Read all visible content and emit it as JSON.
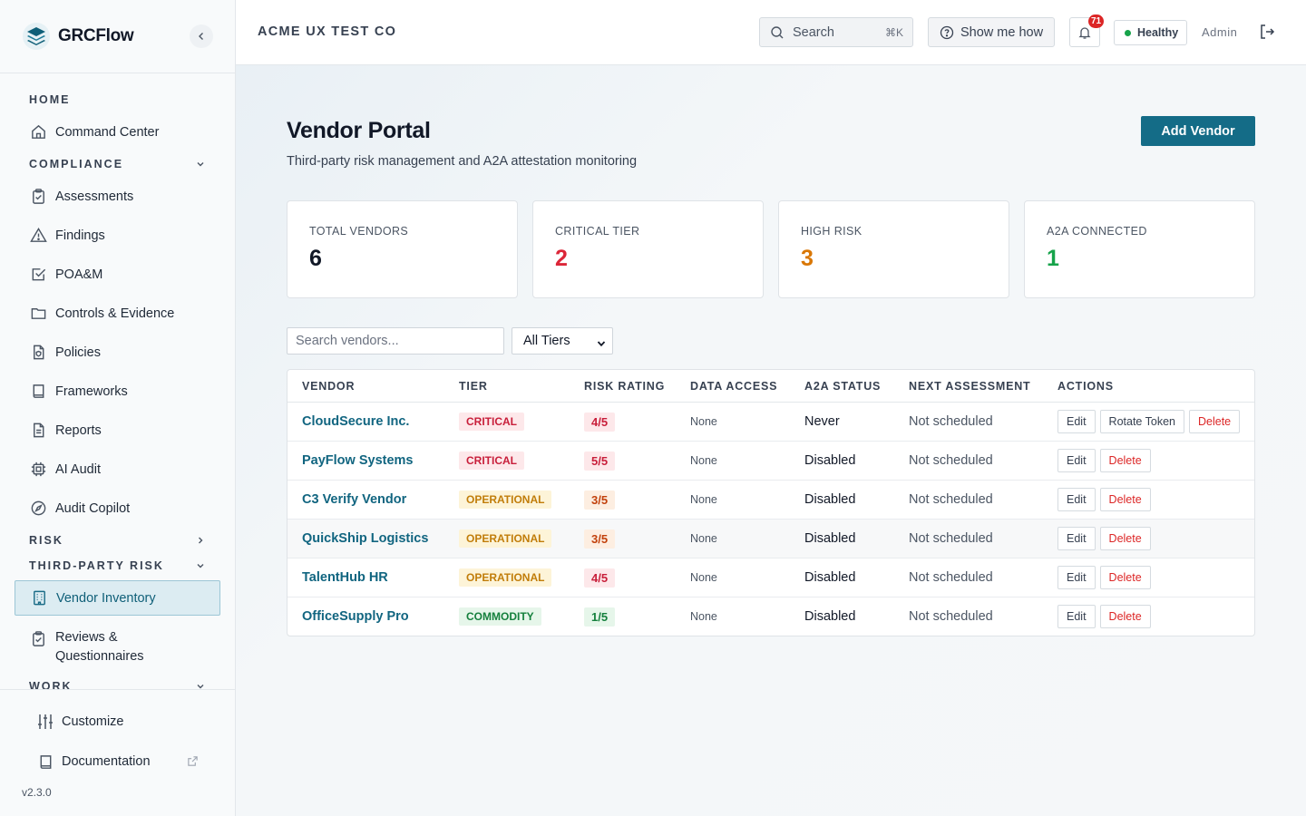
{
  "app": {
    "name": "GRCFlow",
    "version": "v2.3.0"
  },
  "sidebar": {
    "sections": {
      "home": "HOME",
      "compliance": "COMPLIANCE",
      "risk": "RISK",
      "third_party_risk": "THIRD-PARTY RISK",
      "work": "WORK"
    },
    "items": {
      "command_center": "Command Center",
      "assessments": "Assessments",
      "findings": "Findings",
      "poam": "POA&M",
      "controls_evidence": "Controls & Evidence",
      "policies": "Policies",
      "frameworks": "Frameworks",
      "reports": "Reports",
      "ai_audit": "AI Audit",
      "audit_copilot": "Audit Copilot",
      "vendor_inventory": "Vendor Inventory",
      "reviews_questionnaires": "Reviews & Questionnaires"
    },
    "footer": {
      "customize": "Customize",
      "documentation": "Documentation"
    }
  },
  "header": {
    "org": "ACME UX TEST CO",
    "search_label": "Search",
    "search_shortcut": "⌘K",
    "show_me_how": "Show me how",
    "notification_count": "71",
    "health": "Healthy",
    "user": "Admin"
  },
  "page": {
    "title": "Vendor Portal",
    "subtitle": "Third-party risk management and A2A attestation monitoring",
    "add_button": "Add Vendor"
  },
  "stats": [
    {
      "label": "TOTAL VENDORS",
      "value": "6",
      "color": "#111827"
    },
    {
      "label": "CRITICAL TIER",
      "value": "2",
      "color": "#dc2638"
    },
    {
      "label": "HIGH RISK",
      "value": "3",
      "color": "#d97706"
    },
    {
      "label": "A2A CONNECTED",
      "value": "1",
      "color": "#16a34a"
    }
  ],
  "filters": {
    "search_placeholder": "Search vendors...",
    "tier_selected": "All Tiers"
  },
  "table": {
    "headers": [
      "VENDOR",
      "TIER",
      "RISK RATING",
      "DATA ACCESS",
      "A2A STATUS",
      "NEXT ASSESSMENT",
      "ACTIONS"
    ],
    "action_labels": {
      "edit": "Edit",
      "rotate": "Rotate Token",
      "delete": "Delete"
    },
    "rows": [
      {
        "vendor": "CloudSecure Inc.",
        "tier": "CRITICAL",
        "risk": "4/5",
        "access": "None",
        "a2a": "Never",
        "next": "Not scheduled"
      },
      {
        "vendor": "PayFlow Systems",
        "tier": "CRITICAL",
        "risk": "5/5",
        "access": "None",
        "a2a": "Disabled",
        "next": "Not scheduled"
      },
      {
        "vendor": "C3 Verify Vendor",
        "tier": "OPERATIONAL",
        "risk": "3/5",
        "access": "None",
        "a2a": "Disabled",
        "next": "Not scheduled"
      },
      {
        "vendor": "QuickShip Logistics",
        "tier": "OPERATIONAL",
        "risk": "3/5",
        "access": "None",
        "a2a": "Disabled",
        "next": "Not scheduled"
      },
      {
        "vendor": "TalentHub HR",
        "tier": "OPERATIONAL",
        "risk": "4/5",
        "access": "None",
        "a2a": "Disabled",
        "next": "Not scheduled"
      },
      {
        "vendor": "OfficeSupply Pro",
        "tier": "COMMODITY",
        "risk": "1/5",
        "access": "None",
        "a2a": "Disabled",
        "next": "Not scheduled"
      }
    ]
  }
}
